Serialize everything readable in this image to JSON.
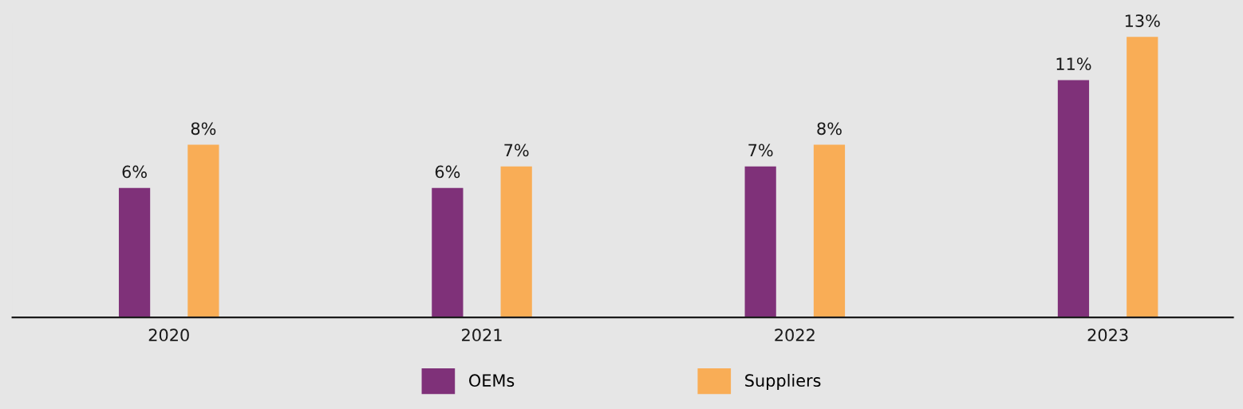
{
  "chart_data": {
    "type": "bar",
    "categories": [
      "2020",
      "2021",
      "2022",
      "2023"
    ],
    "series": [
      {
        "name": "OEMs",
        "color": "#7f3179",
        "values": [
          6,
          6,
          7,
          11
        ],
        "value_labels": [
          "6%",
          "6%",
          "7%",
          "11%"
        ]
      },
      {
        "name": "Suppliers",
        "color": "#f9ad56",
        "values": [
          8,
          7,
          8,
          13
        ],
        "value_labels": [
          "8%",
          "7%",
          "8%",
          "13%"
        ]
      }
    ],
    "grid": false,
    "legend": "bottom"
  }
}
